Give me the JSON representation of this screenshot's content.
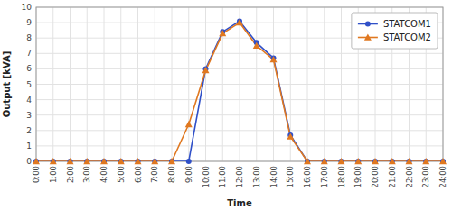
{
  "chart_data": {
    "type": "line",
    "xlabel": "Time",
    "ylabel": "Output [kVA]",
    "categories": [
      "0:00",
      "1:00",
      "2:00",
      "3:00",
      "4:00",
      "5:00",
      "6:00",
      "7:00",
      "8:00",
      "9:00",
      "10:00",
      "11:00",
      "12:00",
      "13:00",
      "14:00",
      "15:00",
      "16:00",
      "17:00",
      "18:00",
      "19:00",
      "20:00",
      "21:00",
      "22:00",
      "23:00",
      "24:00"
    ],
    "series": [
      {
        "name": "STATCOM1",
        "color": "#3050c8",
        "marker": "circle",
        "values": [
          0,
          0,
          0,
          0,
          0,
          0,
          0,
          0,
          0,
          0,
          6.0,
          8.4,
          9.1,
          7.7,
          6.7,
          1.7,
          0,
          0,
          0,
          0,
          0,
          0,
          0,
          0,
          0
        ]
      },
      {
        "name": "STATCOM2",
        "color": "#e07820",
        "marker": "triangle",
        "values": [
          0,
          0,
          0,
          0,
          0,
          0,
          0,
          0,
          0,
          2.4,
          5.9,
          8.3,
          9.0,
          7.5,
          6.6,
          1.6,
          0,
          0,
          0,
          0,
          0,
          0,
          0,
          0,
          0
        ]
      }
    ],
    "ylim": [
      0,
      10
    ],
    "yticks": [
      0,
      1,
      2,
      3,
      4,
      5,
      6,
      7,
      8,
      9,
      10
    ],
    "grid": true,
    "legend": "upper right"
  }
}
